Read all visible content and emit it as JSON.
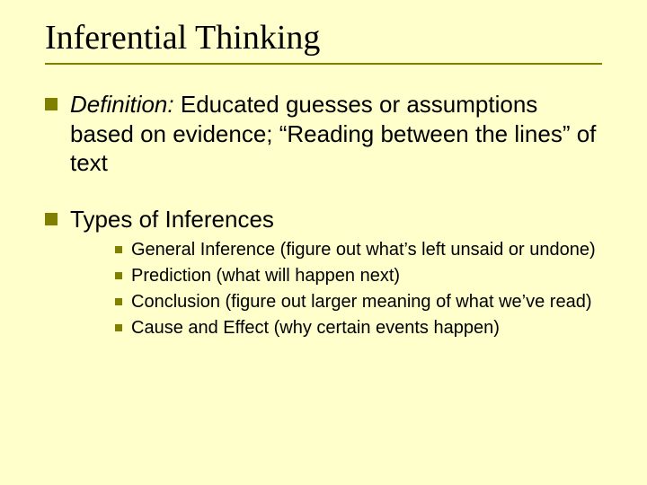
{
  "colors": {
    "background": "#ffffcc",
    "bullet": "#808000",
    "rule": "#808000",
    "text": "#000000"
  },
  "typography": {
    "title_font": "Times New Roman",
    "title_size_pt": 38,
    "body_font": "Arial",
    "level1_size_pt": 26,
    "level2_size_pt": 20
  },
  "title": "Inferential Thinking",
  "bullets": [
    {
      "italic_lead": "Definition:",
      "text": "  Educated guesses or assumptions based on evidence; “Reading between the lines” of text"
    },
    {
      "text": "Types of Inferences",
      "children": [
        {
          "text": "General Inference (figure out what’s left unsaid or undone)"
        },
        {
          "text": "Prediction (what will happen next)"
        },
        {
          "text": "Conclusion (figure out larger meaning of what we’ve read)"
        },
        {
          "text": "Cause and Effect (why certain events happen)"
        }
      ]
    }
  ]
}
